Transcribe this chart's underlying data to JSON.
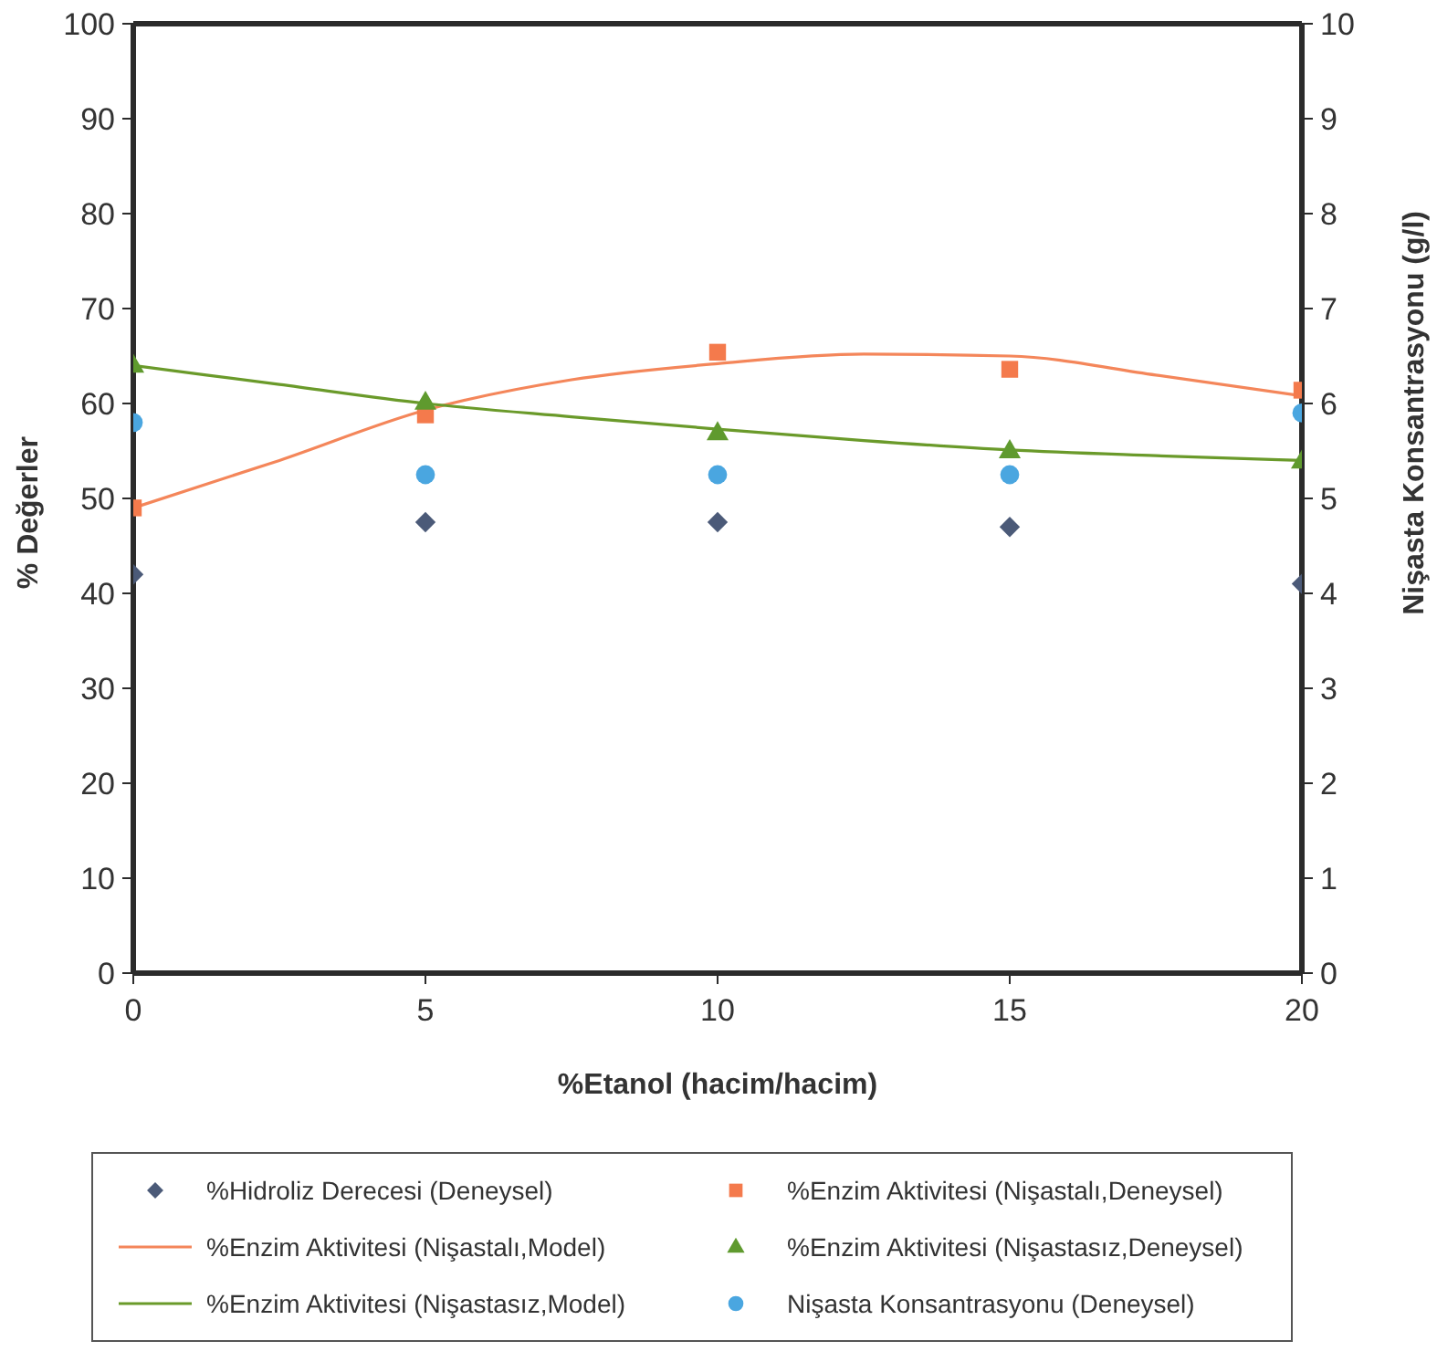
{
  "chart_data": {
    "type": "scatter",
    "xlabel": "%Etanol (hacim/hacim)",
    "ylabel": "% Değerler",
    "y2label": "Nişasta Konsantrasyonu (g/l)",
    "xlim": [
      0,
      20
    ],
    "xticks": [
      0,
      5,
      10,
      15,
      20
    ],
    "ylim": [
      0,
      100
    ],
    "yticks": [
      0,
      10,
      20,
      30,
      40,
      50,
      60,
      70,
      80,
      90,
      100
    ],
    "y2lim": [
      0,
      10
    ],
    "y2ticks": [
      0,
      1,
      2,
      3,
      4,
      5,
      6,
      7,
      8,
      9,
      10
    ],
    "grid": false,
    "legend": "bottom",
    "series": [
      {
        "name": "%Hidroliz Derecesi (Deneysel)",
        "marker": "diamond",
        "color": "#4b5a78",
        "x": [
          0,
          5,
          10,
          15,
          20
        ],
        "values": [
          42,
          47.5,
          47.5,
          47,
          41
        ]
      },
      {
        "name": "%Enzim Aktivitesi (Nişastalı,Deneysel)",
        "marker": "square",
        "color": "#f47a4c",
        "x": [
          0,
          5,
          10,
          15,
          20
        ],
        "values": [
          49,
          58.8,
          65.4,
          63.6,
          61.4
        ]
      },
      {
        "name": "%Enzim Aktivitesi (Nişastalı,Model)",
        "type": "line",
        "marker": "none",
        "color": "#f4865a",
        "x": [
          0,
          2.5,
          5,
          7.5,
          10,
          12.5,
          15,
          17.5,
          20
        ],
        "values": [
          49,
          54,
          59.3,
          62.5,
          64.2,
          65.2,
          65,
          63,
          60.8
        ]
      },
      {
        "name": "%Enzim Aktivitesi (Nişastasız,Deneysel)",
        "marker": "triangle",
        "color": "#5f9a2e",
        "x": [
          0,
          5,
          10,
          15,
          20
        ],
        "values": [
          64,
          60.1,
          56.9,
          55,
          53.9
        ]
      },
      {
        "name": "%Enzim Aktivitesi (Nişastasız,Model)",
        "type": "line",
        "marker": "none",
        "color": "#6a9a2a",
        "x": [
          0,
          2.5,
          5,
          7.5,
          10,
          12.5,
          15,
          17.5,
          20
        ],
        "values": [
          64,
          62,
          60,
          58.6,
          57.3,
          56.1,
          55.1,
          54.5,
          54
        ]
      },
      {
        "name": "Nişasta Konsantrasyonu (Deneysel)",
        "marker": "circle",
        "color": "#4aa6e0",
        "axis": "y2",
        "x": [
          0,
          5,
          10,
          15,
          20
        ],
        "values": [
          5.8,
          5.25,
          5.25,
          5.25,
          5.9
        ]
      }
    ]
  }
}
